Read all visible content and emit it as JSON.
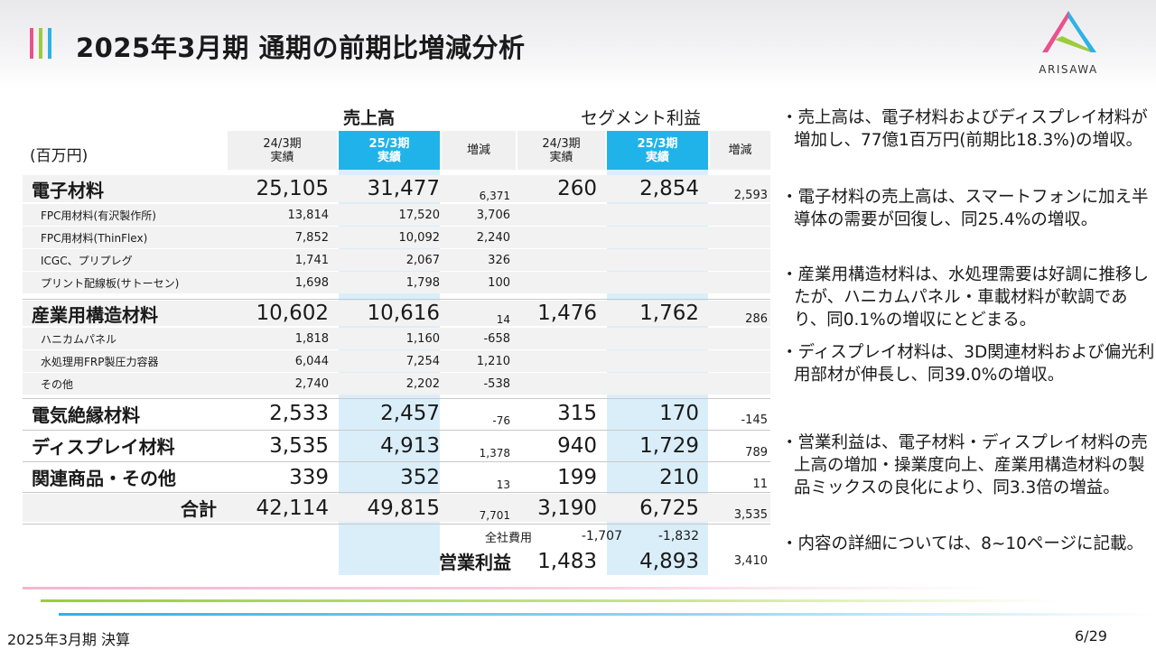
{
  "title": "2025年3月期 通期の前期比増減分析",
  "logo": {
    "name": "ARISAWA",
    "colors": [
      "#e9528e",
      "#9ccc3c",
      "#2db2e5"
    ]
  },
  "table": {
    "unit": "(百万円)",
    "groups": {
      "sales": "売上高",
      "profit": "セグメント利益"
    },
    "headers": {
      "prev": [
        "24/3期",
        "実績"
      ],
      "curr": [
        "25/3期",
        "実績"
      ],
      "diff": "増減"
    },
    "rows": [
      {
        "name": "電子材料",
        "sp": "25,105",
        "sc": "31,477",
        "sd": "6,371",
        "pp": "260",
        "pc": "2,854",
        "pd": "2,593"
      },
      {
        "name": "FPC用材料(有沢製作所)",
        "sp": "13,814",
        "sc": "17,520",
        "sd": "3,706"
      },
      {
        "name": "FPC用材料(ThinFlex)",
        "sp": "7,852",
        "sc": "10,092",
        "sd": "2,240"
      },
      {
        "name": "ICGC、プリプレグ",
        "sp": "1,741",
        "sc": "2,067",
        "sd": "326"
      },
      {
        "name": "プリント配線板(サトーセン)",
        "sp": "1,698",
        "sc": "1,798",
        "sd": "100"
      },
      {
        "name": "産業用構造材料",
        "sp": "10,602",
        "sc": "10,616",
        "sd": "14",
        "pp": "1,476",
        "pc": "1,762",
        "pd": "286"
      },
      {
        "name": "ハニカムパネル",
        "sp": "1,818",
        "sc": "1,160",
        "sd": "-658"
      },
      {
        "name": "水処理用FRP製圧力容器",
        "sp": "6,044",
        "sc": "7,254",
        "sd": "1,210"
      },
      {
        "name": "その他",
        "sp": "2,740",
        "sc": "2,202",
        "sd": "-538"
      },
      {
        "name": "電気絶縁材料",
        "sp": "2,533",
        "sc": "2,457",
        "sd": "-76",
        "pp": "315",
        "pc": "170",
        "pd": "-145"
      },
      {
        "name": "ディスプレイ材料",
        "sp": "3,535",
        "sc": "4,913",
        "sd": "1,378",
        "pp": "940",
        "pc": "1,729",
        "pd": "789"
      },
      {
        "name": "関連商品・その他",
        "sp": "339",
        "sc": "352",
        "sd": "13",
        "pp": "199",
        "pc": "210",
        "pd": "11"
      },
      {
        "name": "合計",
        "sp": "42,114",
        "sc": "49,815",
        "sd": "7,701",
        "pp": "3,190",
        "pc": "6,725",
        "pd": "3,535"
      }
    ],
    "corporate": {
      "label": "全社費用",
      "pp": "-1,707",
      "pc": "-1,832"
    },
    "operating": {
      "label": "営業利益",
      "pp": "1,483",
      "pc": "4,893",
      "pd": "3,410"
    }
  },
  "notes": [
    "・売上高は、電子材料およびディスプレイ材料が増加し、77億1百万円(前期比18.3%)の増収。",
    "・電子材料の売上高は、スマートフォンに加え半導体の需要が回復し、同25.4%の増収。",
    "・産業用構造材料は、水処理需要は好調に推移したが、ハニカムパネル・車載材料が軟調であり、同0.1%の増収にとどまる。",
    "・ディスプレイ材料は、3D関連材料および偏光利用部材が伸長し、同39.0%の増収。",
    "・営業利益は、電子材料・ディスプレイ材料の売上高の増加・操業度向上、産業用構造材料の製品ミックスの良化により、同3.3倍の増益。",
    "・内容の詳細については、8~10ページに記載。"
  ],
  "footer": {
    "left": "2025年3月期 決算",
    "page": "6/29"
  },
  "colors": {
    "pink": "#e9528e",
    "green": "#9ccc3c",
    "blue": "#2db2e5",
    "header_blue": "#20b3e9",
    "highlight": "#daeef9"
  }
}
